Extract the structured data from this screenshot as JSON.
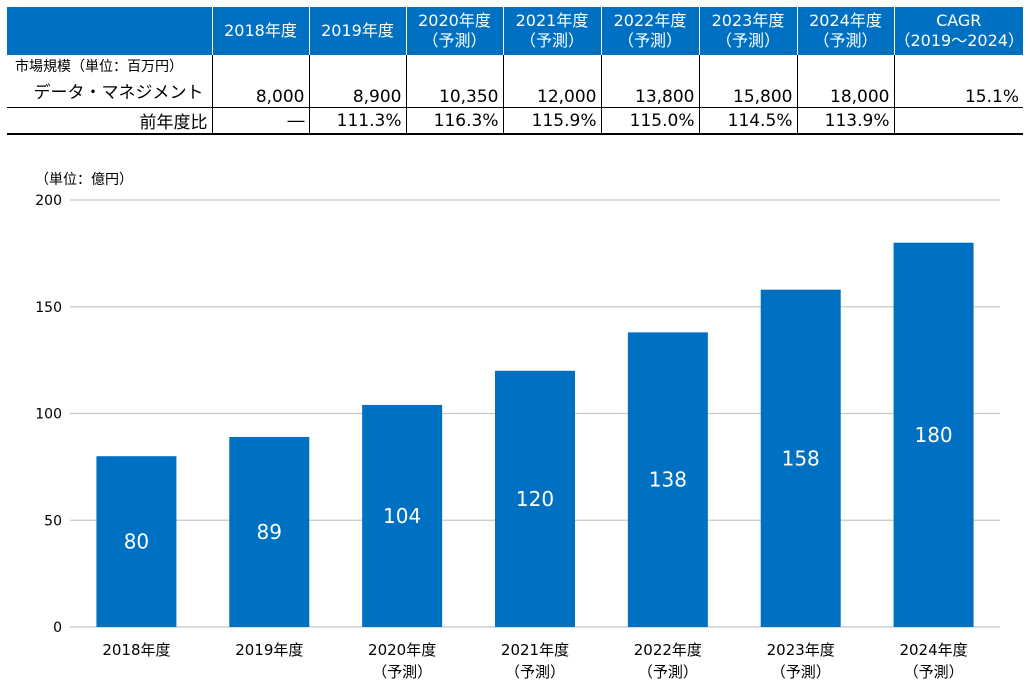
{
  "table": {
    "headers": [
      {
        "line1": "2018年度",
        "line2": ""
      },
      {
        "line1": "2019年度",
        "line2": ""
      },
      {
        "line1": "2020年度",
        "line2": "（予測）"
      },
      {
        "line1": "2021年度",
        "line2": "（予測）"
      },
      {
        "line1": "2022年度",
        "line2": "（予測）"
      },
      {
        "line1": "2023年度",
        "line2": "（予測）"
      },
      {
        "line1": "2024年度",
        "line2": "（予測）"
      },
      {
        "line1": "CAGR",
        "line2": "（2019～2024）"
      }
    ],
    "unit_label": "市場規模（単位：百万円）",
    "market_label": "データ・マネジメント",
    "market_values": [
      "8,000",
      "8,900",
      "10,350",
      "12,000",
      "13,800",
      "15,800",
      "18,000",
      "15.1%"
    ],
    "yoy_label": "前年度比",
    "yoy_values": [
      "―",
      "111.3%",
      "116.3%",
      "115.9%",
      "115.0%",
      "114.5%",
      "113.9%",
      ""
    ]
  },
  "chart_data": {
    "type": "bar",
    "unit_label": "（単位：億円）",
    "categories": [
      [
        "2018年度",
        ""
      ],
      [
        "2019年度",
        ""
      ],
      [
        "2020年度",
        "（予測）"
      ],
      [
        "2021年度",
        "（予測）"
      ],
      [
        "2022年度",
        "（予測）"
      ],
      [
        "2023年度",
        "（予測）"
      ],
      [
        "2024年度",
        "（予測）"
      ]
    ],
    "values": [
      80,
      89,
      104,
      120,
      138,
      158,
      180
    ],
    "ylim": [
      0,
      200
    ],
    "yticks": [
      0,
      50,
      100,
      150,
      200
    ],
    "grid": true,
    "bar_color": "#0071c2",
    "grid_color": "#c8c8c8"
  }
}
